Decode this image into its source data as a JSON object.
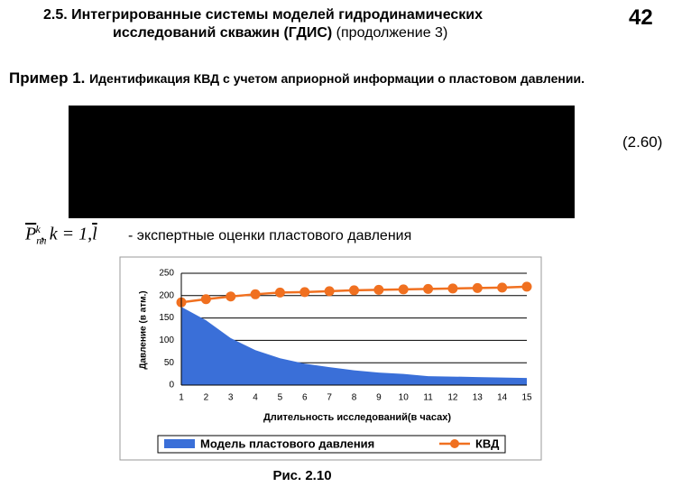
{
  "header": {
    "title_line1": "2.5. Интегрированные системы моделей гидродинамических",
    "title_line2_bold": "исследований скважин (ГДИС)",
    "title_line2_rest": "(продолжение 3)",
    "page": "42"
  },
  "example": {
    "label": "Пример 1.",
    "text": "Идентификация КВД  с учетом априорной информации о пластовом давлении."
  },
  "equation_number": "(2.60)",
  "formula": {
    "symbol": "P",
    "superscript": "k",
    "subscript": "пл",
    "middle": ", k = 1,",
    "limit": "l",
    "description": "- экспертные оценки пластового давления"
  },
  "caption": "Рис. 2.10",
  "chart_data": {
    "type": "line",
    "y_label": "Давление (в атм.)",
    "x_label": "Длительность исследований(в часах)",
    "x": [
      1,
      2,
      3,
      4,
      5,
      6,
      7,
      8,
      9,
      10,
      11,
      12,
      13,
      14,
      15
    ],
    "xlim": [
      1,
      15
    ],
    "ylim": [
      0,
      250
    ],
    "yticks": [
      0,
      50,
      100,
      150,
      200,
      250
    ],
    "grid": true,
    "series": [
      {
        "name": "Модель пластового давления",
        "type": "area",
        "color": "#3a6fd8",
        "values": [
          175,
          145,
          105,
          78,
          60,
          48,
          40,
          33,
          28,
          25,
          20,
          19,
          18,
          17,
          16
        ]
      },
      {
        "name": "КВД",
        "type": "line",
        "color": "#f07020",
        "values": [
          185,
          192,
          198,
          203,
          207,
          208,
          210,
          212,
          213,
          214,
          215,
          216,
          217,
          218,
          220
        ]
      }
    ]
  }
}
